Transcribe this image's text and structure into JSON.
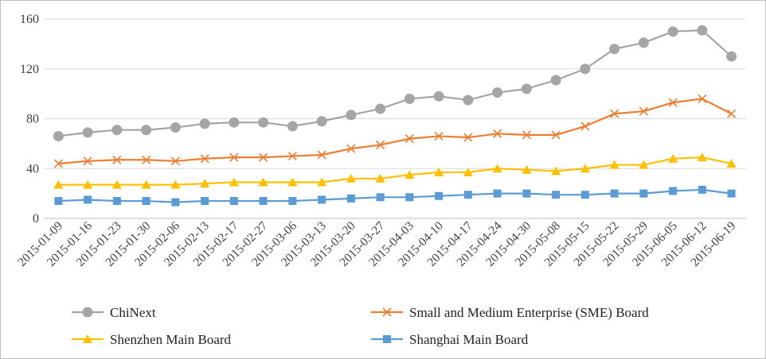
{
  "chart_data": {
    "type": "line",
    "title": "",
    "xlabel": "",
    "ylabel": "",
    "ylim": [
      0,
      160
    ],
    "yticks": [
      0,
      40,
      80,
      120,
      160
    ],
    "grid": "horizontal",
    "legend_position": "bottom",
    "categories": [
      "2015-01-09",
      "2015-01-16",
      "2015-01-23",
      "2015-01-30",
      "2015-02-06",
      "2015-02-13",
      "2015-02-17",
      "2015-02-27",
      "2015-03-06",
      "2015-03-13",
      "2015-03-20",
      "2015-03-27",
      "2015-04-03",
      "2015-04-10",
      "2015-04-17",
      "2015-04-24",
      "2015-04-30",
      "2015-05-08",
      "2015-05-15",
      "2015-05-22",
      "2015-05-29",
      "2015-06-05",
      "2015-06-12",
      "2015-06-19"
    ],
    "series": [
      {
        "name": "ChiNext",
        "color": "#a5a5a5",
        "marker": "circle",
        "values": [
          66,
          69,
          71,
          71,
          73,
          76,
          77,
          77,
          74,
          78,
          83,
          88,
          96,
          98,
          95,
          101,
          104,
          111,
          120,
          136,
          141,
          150,
          151,
          130
        ]
      },
      {
        "name": "Small and Medium Enterprise (SME) Board",
        "color": "#ed7d31",
        "marker": "x",
        "values": [
          44,
          46,
          47,
          47,
          46,
          48,
          49,
          49,
          50,
          51,
          56,
          59,
          64,
          66,
          65,
          68,
          67,
          67,
          74,
          84,
          86,
          93,
          96,
          84
        ]
      },
      {
        "name": "Shenzhen Main Board",
        "color": "#ffc000",
        "marker": "triangle",
        "values": [
          27,
          27,
          27,
          27,
          27,
          28,
          29,
          29,
          29,
          29,
          32,
          32,
          35,
          37,
          37,
          40,
          39,
          38,
          40,
          43,
          43,
          48,
          49,
          44
        ]
      },
      {
        "name": "Shanghai Main Board",
        "color": "#5b9bd5",
        "marker": "square",
        "values": [
          14,
          15,
          14,
          14,
          13,
          14,
          14,
          14,
          14,
          15,
          16,
          17,
          17,
          18,
          19,
          20,
          20,
          19,
          19,
          20,
          20,
          22,
          23,
          20
        ]
      }
    ]
  }
}
